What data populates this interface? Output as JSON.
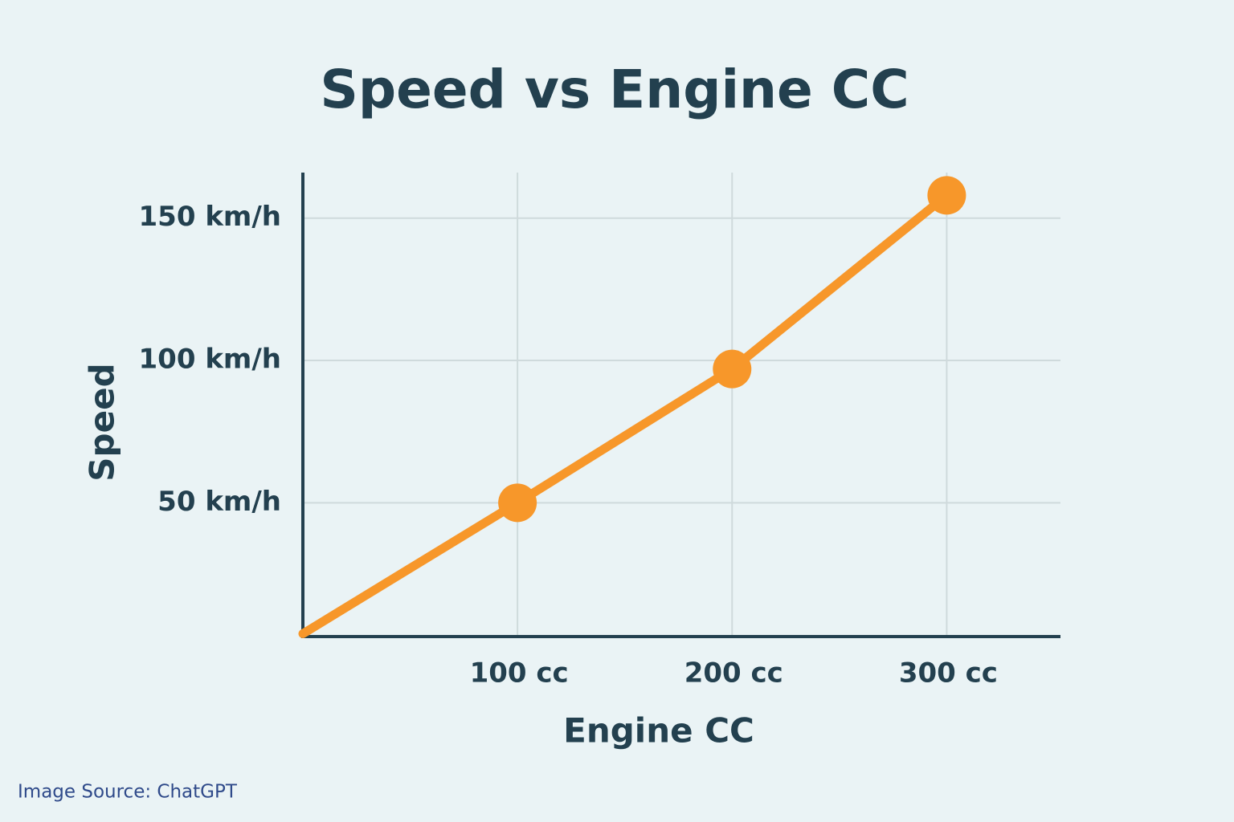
{
  "chart_data": {
    "type": "line",
    "title": "Speed vs Engine CC",
    "x_label": "Engine CC",
    "y_label": "Speed",
    "x": [
      0,
      100,
      200,
      300
    ],
    "series": [
      {
        "name": "Speed",
        "color": "#f7972a",
        "values": [
          4,
          50,
          97,
          158
        ],
        "markers": [
          false,
          true,
          true,
          true
        ]
      }
    ],
    "xlim": [
      0,
      353
    ],
    "ylim": [
      3,
      166
    ],
    "xticks": [
      {
        "value": 100,
        "label": "100 cc"
      },
      {
        "value": 200,
        "label": "200 cc"
      },
      {
        "value": 300,
        "label": "300 cc"
      }
    ],
    "yticks": [
      {
        "value": 50,
        "label": "50 km/h"
      },
      {
        "value": 100,
        "label": "100 km/h"
      },
      {
        "value": 150,
        "label": "150 km/h"
      }
    ],
    "grid": true
  },
  "source": "Image Source: ChatGPT"
}
